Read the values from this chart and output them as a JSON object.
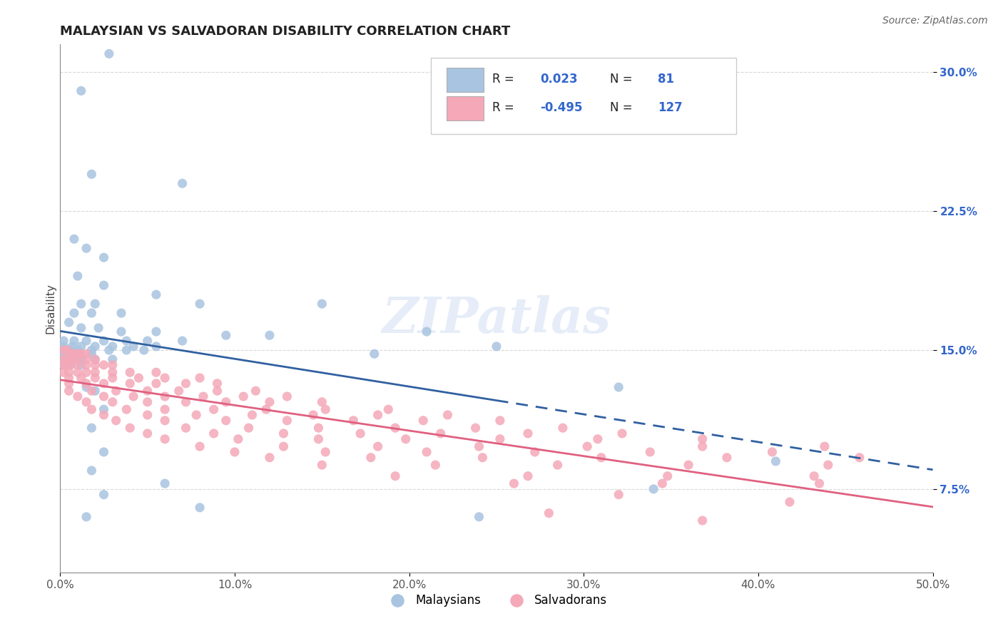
{
  "title": "MALAYSIAN VS SALVADORAN DISABILITY CORRELATION CHART",
  "source": "Source: ZipAtlas.com",
  "ylabel": "Disability",
  "xlim": [
    0.0,
    0.5
  ],
  "ylim": [
    0.03,
    0.315
  ],
  "yticks": [
    0.075,
    0.15,
    0.225,
    0.3
  ],
  "ytick_labels": [
    "7.5%",
    "15.0%",
    "22.5%",
    "30.0%"
  ],
  "xticks": [
    0.0,
    0.1,
    0.2,
    0.3,
    0.4,
    0.5
  ],
  "xtick_labels": [
    "0.0%",
    "10.0%",
    "20.0%",
    "30.0%",
    "40.0%",
    "50.0%"
  ],
  "blue_color": "#a8c4e0",
  "pink_color": "#f4a8b8",
  "blue_line_color": "#3060a0",
  "pink_line_color": "#e06080",
  "blue_scatter": [
    [
      0.012,
      0.29
    ],
    [
      0.028,
      0.31
    ],
    [
      0.018,
      0.245
    ],
    [
      0.07,
      0.24
    ],
    [
      0.008,
      0.21
    ],
    [
      0.015,
      0.205
    ],
    [
      0.025,
      0.2
    ],
    [
      0.01,
      0.19
    ],
    [
      0.025,
      0.185
    ],
    [
      0.055,
      0.18
    ],
    [
      0.012,
      0.175
    ],
    [
      0.02,
      0.175
    ],
    [
      0.08,
      0.175
    ],
    [
      0.15,
      0.175
    ],
    [
      0.008,
      0.17
    ],
    [
      0.018,
      0.17
    ],
    [
      0.035,
      0.17
    ],
    [
      0.005,
      0.165
    ],
    [
      0.012,
      0.162
    ],
    [
      0.022,
      0.162
    ],
    [
      0.035,
      0.16
    ],
    [
      0.055,
      0.16
    ],
    [
      0.095,
      0.158
    ],
    [
      0.12,
      0.158
    ],
    [
      0.002,
      0.155
    ],
    [
      0.008,
      0.155
    ],
    [
      0.015,
      0.155
    ],
    [
      0.025,
      0.155
    ],
    [
      0.038,
      0.155
    ],
    [
      0.05,
      0.155
    ],
    [
      0.07,
      0.155
    ],
    [
      0.002,
      0.152
    ],
    [
      0.007,
      0.152
    ],
    [
      0.012,
      0.152
    ],
    [
      0.02,
      0.152
    ],
    [
      0.03,
      0.152
    ],
    [
      0.042,
      0.152
    ],
    [
      0.055,
      0.152
    ],
    [
      0.002,
      0.15
    ],
    [
      0.006,
      0.15
    ],
    [
      0.01,
      0.15
    ],
    [
      0.018,
      0.15
    ],
    [
      0.028,
      0.15
    ],
    [
      0.038,
      0.15
    ],
    [
      0.048,
      0.15
    ],
    [
      0.002,
      0.148
    ],
    [
      0.006,
      0.148
    ],
    [
      0.01,
      0.148
    ],
    [
      0.018,
      0.148
    ],
    [
      0.002,
      0.145
    ],
    [
      0.006,
      0.145
    ],
    [
      0.012,
      0.145
    ],
    [
      0.02,
      0.145
    ],
    [
      0.03,
      0.145
    ],
    [
      0.002,
      0.142
    ],
    [
      0.006,
      0.142
    ],
    [
      0.012,
      0.142
    ],
    [
      0.18,
      0.148
    ],
    [
      0.25,
      0.152
    ],
    [
      0.21,
      0.16
    ],
    [
      0.015,
      0.13
    ],
    [
      0.02,
      0.128
    ],
    [
      0.025,
      0.118
    ],
    [
      0.018,
      0.108
    ],
    [
      0.025,
      0.095
    ],
    [
      0.018,
      0.085
    ],
    [
      0.025,
      0.072
    ],
    [
      0.34,
      0.075
    ],
    [
      0.32,
      0.13
    ],
    [
      0.41,
      0.09
    ],
    [
      0.015,
      0.06
    ],
    [
      0.24,
      0.06
    ],
    [
      0.08,
      0.065
    ],
    [
      0.06,
      0.078
    ]
  ],
  "pink_scatter": [
    [
      0.002,
      0.15
    ],
    [
      0.004,
      0.15
    ],
    [
      0.006,
      0.148
    ],
    [
      0.008,
      0.148
    ],
    [
      0.01,
      0.148
    ],
    [
      0.012,
      0.148
    ],
    [
      0.015,
      0.148
    ],
    [
      0.002,
      0.145
    ],
    [
      0.004,
      0.145
    ],
    [
      0.006,
      0.145
    ],
    [
      0.008,
      0.145
    ],
    [
      0.01,
      0.145
    ],
    [
      0.015,
      0.145
    ],
    [
      0.02,
      0.145
    ],
    [
      0.002,
      0.142
    ],
    [
      0.004,
      0.142
    ],
    [
      0.006,
      0.142
    ],
    [
      0.01,
      0.142
    ],
    [
      0.015,
      0.142
    ],
    [
      0.02,
      0.142
    ],
    [
      0.025,
      0.142
    ],
    [
      0.03,
      0.142
    ],
    [
      0.002,
      0.138
    ],
    [
      0.005,
      0.138
    ],
    [
      0.01,
      0.138
    ],
    [
      0.015,
      0.138
    ],
    [
      0.02,
      0.138
    ],
    [
      0.03,
      0.138
    ],
    [
      0.04,
      0.138
    ],
    [
      0.055,
      0.138
    ],
    [
      0.005,
      0.135
    ],
    [
      0.012,
      0.135
    ],
    [
      0.02,
      0.135
    ],
    [
      0.03,
      0.135
    ],
    [
      0.045,
      0.135
    ],
    [
      0.06,
      0.135
    ],
    [
      0.08,
      0.135
    ],
    [
      0.005,
      0.132
    ],
    [
      0.015,
      0.132
    ],
    [
      0.025,
      0.132
    ],
    [
      0.04,
      0.132
    ],
    [
      0.055,
      0.132
    ],
    [
      0.072,
      0.132
    ],
    [
      0.09,
      0.132
    ],
    [
      0.005,
      0.128
    ],
    [
      0.018,
      0.128
    ],
    [
      0.032,
      0.128
    ],
    [
      0.05,
      0.128
    ],
    [
      0.068,
      0.128
    ],
    [
      0.09,
      0.128
    ],
    [
      0.112,
      0.128
    ],
    [
      0.01,
      0.125
    ],
    [
      0.025,
      0.125
    ],
    [
      0.042,
      0.125
    ],
    [
      0.06,
      0.125
    ],
    [
      0.082,
      0.125
    ],
    [
      0.105,
      0.125
    ],
    [
      0.13,
      0.125
    ],
    [
      0.015,
      0.122
    ],
    [
      0.03,
      0.122
    ],
    [
      0.05,
      0.122
    ],
    [
      0.072,
      0.122
    ],
    [
      0.095,
      0.122
    ],
    [
      0.12,
      0.122
    ],
    [
      0.15,
      0.122
    ],
    [
      0.018,
      0.118
    ],
    [
      0.038,
      0.118
    ],
    [
      0.06,
      0.118
    ],
    [
      0.088,
      0.118
    ],
    [
      0.118,
      0.118
    ],
    [
      0.152,
      0.118
    ],
    [
      0.188,
      0.118
    ],
    [
      0.025,
      0.115
    ],
    [
      0.05,
      0.115
    ],
    [
      0.078,
      0.115
    ],
    [
      0.11,
      0.115
    ],
    [
      0.145,
      0.115
    ],
    [
      0.182,
      0.115
    ],
    [
      0.222,
      0.115
    ],
    [
      0.032,
      0.112
    ],
    [
      0.06,
      0.112
    ],
    [
      0.095,
      0.112
    ],
    [
      0.13,
      0.112
    ],
    [
      0.168,
      0.112
    ],
    [
      0.208,
      0.112
    ],
    [
      0.252,
      0.112
    ],
    [
      0.04,
      0.108
    ],
    [
      0.072,
      0.108
    ],
    [
      0.108,
      0.108
    ],
    [
      0.148,
      0.108
    ],
    [
      0.192,
      0.108
    ],
    [
      0.238,
      0.108
    ],
    [
      0.288,
      0.108
    ],
    [
      0.05,
      0.105
    ],
    [
      0.088,
      0.105
    ],
    [
      0.128,
      0.105
    ],
    [
      0.172,
      0.105
    ],
    [
      0.218,
      0.105
    ],
    [
      0.268,
      0.105
    ],
    [
      0.322,
      0.105
    ],
    [
      0.06,
      0.102
    ],
    [
      0.102,
      0.102
    ],
    [
      0.148,
      0.102
    ],
    [
      0.198,
      0.102
    ],
    [
      0.252,
      0.102
    ],
    [
      0.308,
      0.102
    ],
    [
      0.368,
      0.102
    ],
    [
      0.08,
      0.098
    ],
    [
      0.128,
      0.098
    ],
    [
      0.182,
      0.098
    ],
    [
      0.24,
      0.098
    ],
    [
      0.302,
      0.098
    ],
    [
      0.368,
      0.098
    ],
    [
      0.438,
      0.098
    ],
    [
      0.1,
      0.095
    ],
    [
      0.152,
      0.095
    ],
    [
      0.21,
      0.095
    ],
    [
      0.272,
      0.095
    ],
    [
      0.338,
      0.095
    ],
    [
      0.408,
      0.095
    ],
    [
      0.12,
      0.092
    ],
    [
      0.178,
      0.092
    ],
    [
      0.242,
      0.092
    ],
    [
      0.31,
      0.092
    ],
    [
      0.382,
      0.092
    ],
    [
      0.458,
      0.092
    ],
    [
      0.15,
      0.088
    ],
    [
      0.215,
      0.088
    ],
    [
      0.285,
      0.088
    ],
    [
      0.36,
      0.088
    ],
    [
      0.44,
      0.088
    ],
    [
      0.192,
      0.082
    ],
    [
      0.268,
      0.082
    ],
    [
      0.348,
      0.082
    ],
    [
      0.432,
      0.082
    ],
    [
      0.26,
      0.078
    ],
    [
      0.345,
      0.078
    ],
    [
      0.435,
      0.078
    ],
    [
      0.32,
      0.072
    ],
    [
      0.418,
      0.068
    ],
    [
      0.28,
      0.062
    ],
    [
      0.368,
      0.058
    ]
  ],
  "background_color": "#ffffff",
  "grid_color": "#c8c8c8",
  "watermark_text": "ZIPatlas",
  "blue_data_xlim": 0.25
}
